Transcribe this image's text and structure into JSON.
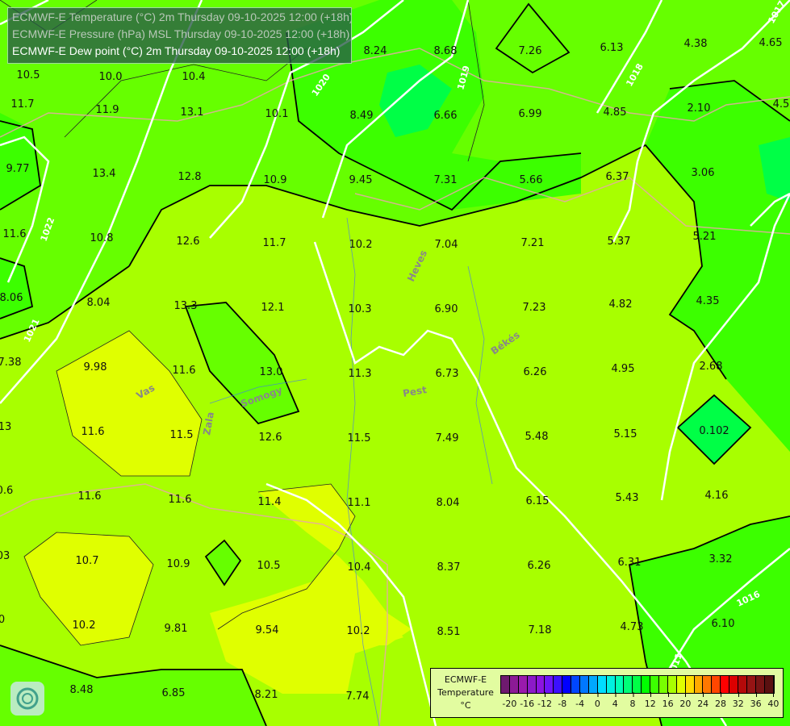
{
  "header": {
    "lines": [
      "ECMWF-E Temperature (°C) 2m Thursday 09-10-2025 12:00 (+18h)",
      "ECMWF-E Pressure (hPa) MSL Thursday 09-10-2025 12:00 (+18h)",
      "ECMWF-E Dew point (°C) 2m Thursday 09-10-2025 12:00 (+18h)"
    ],
    "colors": [
      "#b8c8b8",
      "#b8c8b8",
      "#ffffff"
    ]
  },
  "legend": {
    "title": [
      "ECMWF-E",
      "Temperature",
      "°C"
    ],
    "ticks": [
      "-20",
      "-16",
      "-12",
      "-8",
      "-4",
      "0",
      "4",
      "8",
      "12",
      "16",
      "20",
      "24",
      "28",
      "32",
      "36",
      "40"
    ],
    "colors": [
      "#6e1a6e",
      "#8c1a96",
      "#9a1aac",
      "#8c1ac8",
      "#8c14e0",
      "#6e14f8",
      "#3c10ff",
      "#0000ff",
      "#0046ff",
      "#0078ff",
      "#00a8ff",
      "#00dcff",
      "#00f0e0",
      "#00ffb4",
      "#00ff78",
      "#00ff46",
      "#00ff00",
      "#3cff00",
      "#78ff00",
      "#a8ff00",
      "#e0ff00",
      "#ffdc00",
      "#ffaa00",
      "#ff7800",
      "#ff4600",
      "#ff0000",
      "#dc0000",
      "#b40a0a",
      "#961414",
      "#781414",
      "#5a1010"
    ]
  },
  "map": {
    "dewpoint_values": [
      "10.5",
      "10.0",
      "10.4",
      "8.24",
      "8.68",
      "7.26",
      "6.13",
      "4.38",
      "4.65",
      "11.7",
      "11.9",
      "13.1",
      "10.1",
      "8.49",
      "6.66",
      "6.99",
      "4.85",
      "2.10",
      "4.5",
      "9.77",
      "13.4",
      "12.8",
      "10.9",
      "9.45",
      "7.31",
      "5.66",
      "6.37",
      "3.06",
      "11.6",
      "10.8",
      "12.6",
      "11.7",
      "10.2",
      "7.04",
      "7.21",
      "5.37",
      "5.21",
      "8.06",
      "8.04",
      "13.3",
      "12.1",
      "10.3",
      "6.90",
      "7.23",
      "4.82",
      "4.35",
      "7.38",
      "9.98",
      "11.6",
      "13.0",
      "11.3",
      "6.73",
      "6.26",
      "4.95",
      "2.68",
      "13",
      "11.6",
      "11.5",
      "12.6",
      "11.5",
      "7.49",
      "5.48",
      "5.15",
      "0.102",
      "0.6",
      "11.6",
      "11.6",
      "11.4",
      "11.1",
      "8.04",
      "6.15",
      "5.43",
      "4.16",
      "03",
      "10.7",
      "10.9",
      "10.5",
      "10.4",
      "8.37",
      "6.26",
      "6.31",
      "3.32",
      "0",
      "10.2",
      "9.81",
      "9.54",
      "10.2",
      "8.51",
      "7.18",
      "4.73",
      "6.10",
      "8.48",
      "6.85",
      "8.21",
      "7.74"
    ],
    "isobar_labels": [
      "1022",
      "1021",
      "1020",
      "1019",
      "1018",
      "1016",
      "1011",
      "1017"
    ],
    "region_labels": [
      "Heves",
      "Pest",
      "Békés",
      "Vas",
      "Zala",
      "Somogy"
    ]
  }
}
